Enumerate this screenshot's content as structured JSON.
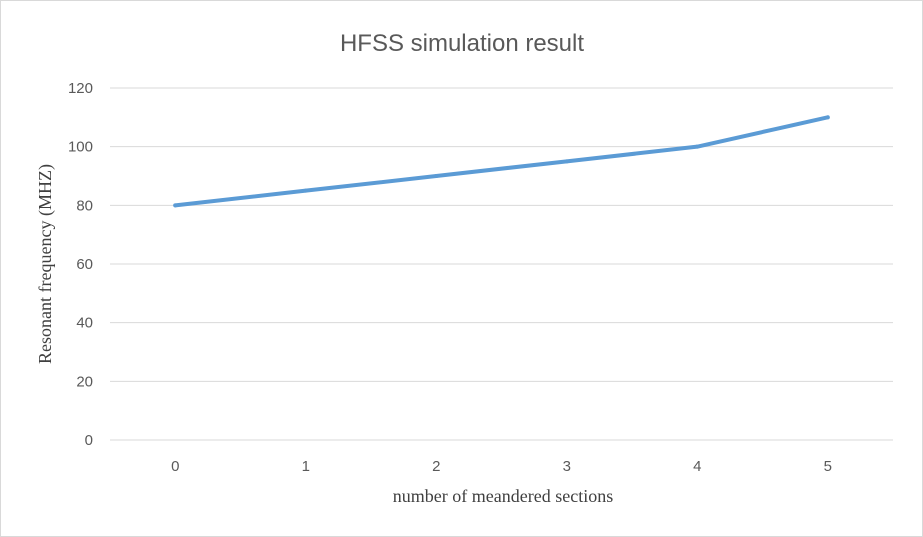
{
  "chart_data": {
    "type": "line",
    "title": "HFSS simulation result",
    "xlabel": "number of meandered sections",
    "ylabel": "Resonant frequency (MHZ)",
    "categories": [
      "0",
      "1",
      "2",
      "3",
      "4",
      "5"
    ],
    "series": [
      {
        "values": [
          80,
          85,
          90,
          95,
          100,
          110
        ]
      }
    ],
    "ylim": [
      0,
      120
    ],
    "yticks": [
      "0",
      "20",
      "40",
      "60",
      "80",
      "100",
      "120"
    ],
    "grid": true,
    "legend": "none",
    "colors": {
      "series": "#5b9bd5",
      "grid": "#d9d9d9",
      "text": "#595959"
    }
  }
}
